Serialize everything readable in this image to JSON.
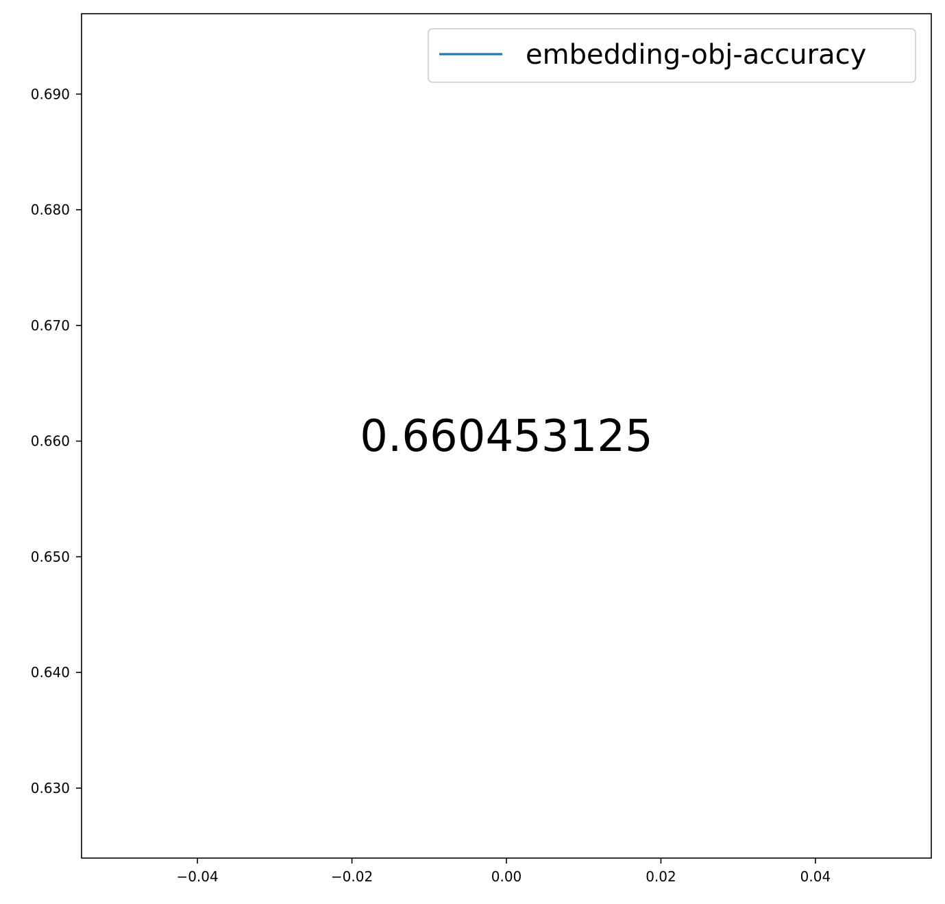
{
  "chart_data": {
    "type": "line",
    "x": [
      0.0
    ],
    "series": [
      {
        "name": "embedding-obj-accuracy",
        "values": [
          0.660453125
        ],
        "color": "#1f77b4"
      }
    ],
    "annotation": {
      "text": "0.660453125",
      "x": 0.0,
      "y": 0.660453125
    },
    "xlim": [
      -0.055,
      0.055
    ],
    "ylim": [
      0.62395,
      0.69695
    ],
    "xticks": [
      {
        "value": -0.04,
        "label": "−0.04"
      },
      {
        "value": -0.02,
        "label": "−0.02"
      },
      {
        "value": 0.0,
        "label": "0.00"
      },
      {
        "value": 0.02,
        "label": "0.02"
      },
      {
        "value": 0.04,
        "label": "0.04"
      }
    ],
    "yticks": [
      {
        "value": 0.63,
        "label": "0.630"
      },
      {
        "value": 0.64,
        "label": "0.640"
      },
      {
        "value": 0.65,
        "label": "0.650"
      },
      {
        "value": 0.66,
        "label": "0.660"
      },
      {
        "value": 0.67,
        "label": "0.670"
      },
      {
        "value": 0.68,
        "label": "0.680"
      },
      {
        "value": 0.69,
        "label": "0.690"
      }
    ],
    "legend": {
      "position": "upper right",
      "entries": [
        "embedding-obj-accuracy"
      ]
    },
    "grid": false,
    "title": "",
    "xlabel": "",
    "ylabel": ""
  }
}
